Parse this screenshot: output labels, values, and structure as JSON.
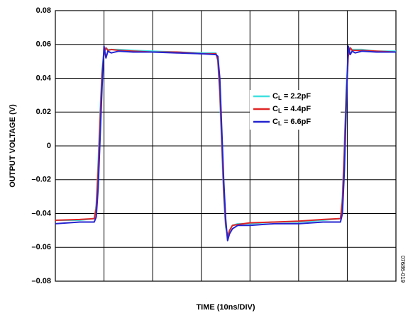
{
  "chart_data": {
    "type": "line",
    "xlabel": "TIME (10ns/DIV)",
    "ylabel": "OUTPUT VOLTAGE (V)",
    "annotation": "07686-019",
    "x": [
      0,
      5,
      8,
      8.4,
      8.8,
      9.2,
      9.6,
      10,
      10.4,
      10.8,
      11.5,
      13,
      16,
      20,
      25,
      30,
      33,
      33.4,
      33.8,
      34.2,
      34.6,
      35,
      35.4,
      35.8,
      36.4,
      37.5,
      40,
      45,
      50,
      55,
      58.6,
      59,
      59.4,
      59.8,
      60.2,
      60.6,
      61,
      61.6,
      63,
      66,
      70
    ],
    "series": [
      {
        "name": "CL = 2.2pF",
        "color": "#3fe0e0",
        "values": [
          -0.044,
          -0.044,
          -0.043,
          -0.035,
          -0.01,
          0.02,
          0.045,
          0.056,
          0.058,
          0.057,
          0.057,
          0.057,
          0.0565,
          0.056,
          0.0555,
          0.055,
          0.055,
          0.05,
          0.03,
          0.0,
          -0.03,
          -0.048,
          -0.053,
          -0.05,
          -0.047,
          -0.046,
          -0.046,
          -0.045,
          -0.045,
          -0.044,
          -0.043,
          -0.03,
          0.0,
          0.035,
          0.054,
          0.058,
          0.057,
          0.057,
          0.057,
          0.056,
          0.056
        ]
      },
      {
        "name": "CL = 4.4pF",
        "color": "#e02424",
        "values": [
          -0.044,
          -0.0435,
          -0.043,
          -0.037,
          -0.015,
          0.015,
          0.042,
          0.055,
          0.058,
          0.0565,
          0.057,
          0.0565,
          0.056,
          0.0555,
          0.0555,
          0.0545,
          0.0545,
          0.051,
          0.033,
          0.004,
          -0.026,
          -0.046,
          -0.054,
          -0.05,
          -0.047,
          -0.0465,
          -0.0455,
          -0.045,
          -0.0445,
          -0.0435,
          -0.043,
          -0.033,
          -0.004,
          0.03,
          0.053,
          0.058,
          0.0565,
          0.0565,
          0.0565,
          0.056,
          0.0555
        ]
      },
      {
        "name": "CL = 6.6pF",
        "color": "#2424d0",
        "values": [
          -0.046,
          -0.045,
          -0.045,
          -0.042,
          -0.025,
          0.005,
          0.035,
          0.059,
          0.052,
          0.056,
          0.055,
          0.056,
          0.0555,
          0.0555,
          0.055,
          0.0545,
          0.054,
          0.053,
          0.04,
          0.01,
          -0.02,
          -0.043,
          -0.056,
          -0.052,
          -0.049,
          -0.047,
          -0.047,
          -0.046,
          -0.046,
          -0.045,
          -0.045,
          -0.04,
          -0.015,
          0.025,
          0.059,
          0.054,
          0.056,
          0.055,
          0.056,
          0.0555,
          0.0555
        ]
      }
    ],
    "xlim": [
      0,
      70
    ],
    "xticks": [
      0,
      10,
      20,
      30,
      40,
      50,
      60,
      70
    ],
    "ylim": [
      -0.08,
      0.08
    ],
    "yticks": [
      {
        "value": -0.08,
        "label": "–0.08"
      },
      {
        "value": -0.06,
        "label": "–0.06"
      },
      {
        "value": -0.04,
        "label": "–0.04"
      },
      {
        "value": -0.02,
        "label": "–0.02"
      },
      0,
      0.02,
      0.04,
      0.06,
      0.08
    ],
    "grid": true
  }
}
